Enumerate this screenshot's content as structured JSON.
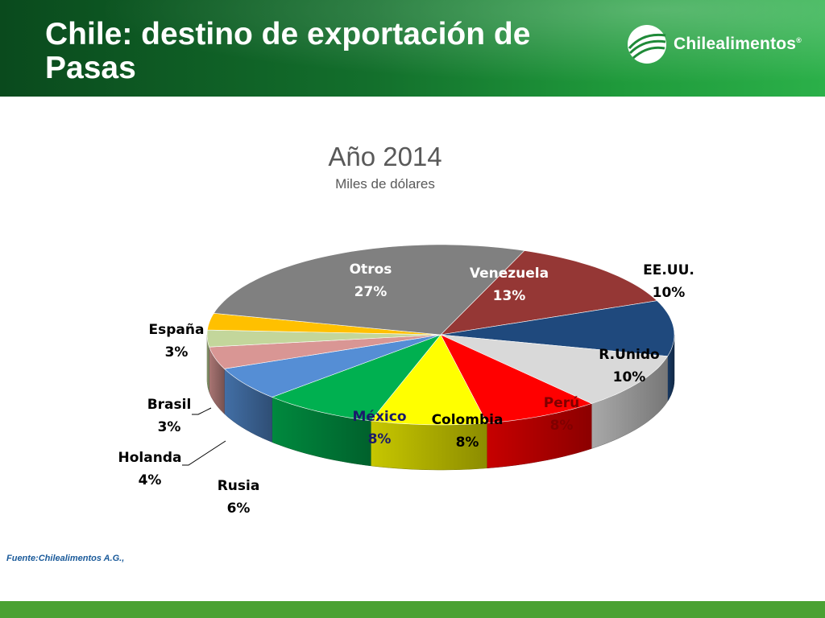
{
  "header": {
    "title": "Chile: destino de exportación de Pasas",
    "logo_text": "Chilealimentos",
    "logo_mark": "®",
    "logo_icon": "globe-swoosh-icon",
    "colors": {
      "header_dark": "#0a4a1d",
      "header_light": "#2bb049"
    }
  },
  "source": "Fuente:Chilealimentos A.G.,",
  "chart_data": {
    "type": "pie",
    "style": "3d",
    "title": "Año 2014",
    "subtitle": "Miles de dólares",
    "unit": "%",
    "slices": [
      {
        "label": "Venezuela",
        "value": 13,
        "color": "#953735",
        "label_color": "#ffffff"
      },
      {
        "label": "EE.UU.",
        "value": 10,
        "color": "#1f497d",
        "label_color": "#000000"
      },
      {
        "label": "R.Unido",
        "value": 10,
        "color": "#d9d9d9",
        "label_color": "#000000"
      },
      {
        "label": "Perú",
        "value": 8,
        "color": "#ff0000",
        "label_color": "#7f0000"
      },
      {
        "label": "Colombia",
        "value": 8,
        "color": "#ffff00",
        "label_color": "#000000"
      },
      {
        "label": "México",
        "value": 8,
        "color": "#00b050",
        "label_color": "#1a1a6a"
      },
      {
        "label": "Rusia",
        "value": 6,
        "color": "#558ed5",
        "label_color": "#000000"
      },
      {
        "label": "Holanda",
        "value": 4,
        "color": "#d99694",
        "label_color": "#000000"
      },
      {
        "label": "Brasil",
        "value": 3,
        "color": "#c3d69b",
        "label_color": "#000000"
      },
      {
        "label": "España",
        "value": 3,
        "color": "#ffc000",
        "label_color": "#000000"
      },
      {
        "label": "Otros",
        "value": 27,
        "color": "#808080",
        "label_color": "#ffffff"
      }
    ],
    "legend": "none"
  }
}
